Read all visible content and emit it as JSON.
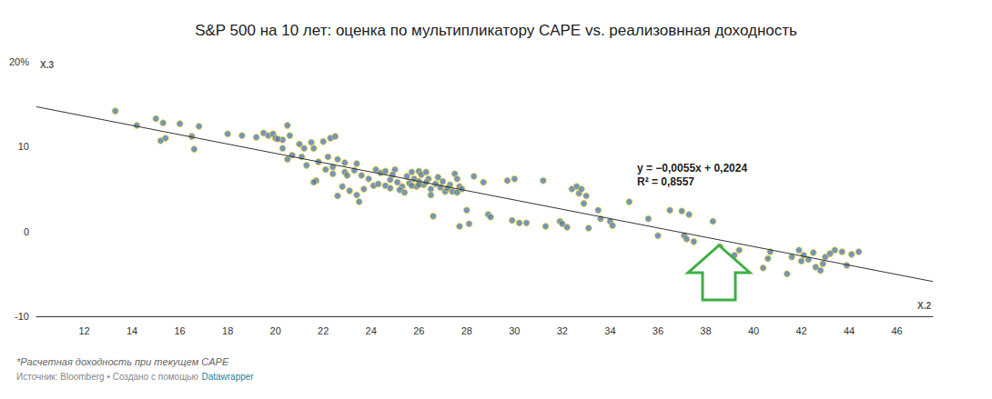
{
  "chart_data": {
    "type": "scatter",
    "title": "S&P 500 на 10 лет: оценка по мультипликатору CAPE vs. реализовнная доходность",
    "x_label": "X.2",
    "y_label": "X.3",
    "x": [
      13.3,
      14.2,
      15,
      15.3,
      15.2,
      15.4,
      16,
      16.5,
      16.6,
      16.8,
      18,
      18.6,
      19.2,
      19.5,
      19.7,
      19.9,
      20,
      20.3,
      20.5,
      20.6,
      20.3,
      20.5,
      20.7,
      21,
      21.2,
      21.3,
      21.5,
      21.6,
      21.8,
      22,
      22.3,
      22.5,
      22.2,
      21.7,
      21.6,
      22.1,
      22.4,
      22.6,
      22.9,
      23,
      23.4,
      23.3,
      23.6,
      23.7,
      23.4,
      23.5,
      22.8,
      22.6,
      23.1,
      22.4,
      23.9,
      24.2,
      24.4,
      24.1,
      24.6,
      24.8,
      24.6,
      24.8,
      25,
      25.1,
      25.3,
      25.2,
      25.5,
      25.6,
      25.7,
      25.8,
      25.9,
      25.4,
      26,
      26,
      26.1,
      26.2,
      26.3,
      26.4,
      26.5,
      26.5,
      26.6,
      26.7,
      26.8,
      26.9,
      27,
      27.1,
      27.3,
      27.5,
      27.6,
      27.4,
      27.7,
      27.8,
      27.6,
      27.7,
      28,
      28.1,
      28.3,
      28.7,
      28.9,
      29,
      29.7,
      29.9,
      30,
      30.2,
      30.5,
      31.2,
      31.3,
      31.9,
      32,
      32.2,
      32.4,
      32.6,
      32.7,
      32.8,
      33,
      32.9,
      33.1,
      33.5,
      33.6,
      34,
      34.1,
      34.8,
      35.6,
      36,
      36.5,
      37,
      37.1,
      37.3,
      37.2,
      37.5,
      38.3,
      38.6,
      38.8,
      39.2,
      39.4,
      40.4,
      40.6,
      40.7,
      41.4,
      41.6,
      41.9,
      42,
      42.1,
      42.3,
      42.5,
      42.6,
      42.8,
      42.9,
      43,
      43.2,
      43.4,
      43.7,
      43.9,
      44.1,
      44.4,
      21.1,
      24.3,
      25.7,
      26.3,
      27.2,
      20.1,
      22.9,
      24.9,
      26.0
    ],
    "values": [
      14.2,
      12.5,
      13.3,
      12.8,
      10.7,
      11,
      12.7,
      11.2,
      9.7,
      12.4,
      11.5,
      11.3,
      11.1,
      11.6,
      11.3,
      11.5,
      11,
      10.8,
      12.5,
      11.3,
      9.8,
      8.5,
      9,
      10.3,
      9.8,
      7.8,
      10.5,
      9.8,
      8.2,
      10.6,
      11,
      11.2,
      8.8,
      6,
      5.8,
      7.3,
      7.6,
      8.5,
      7,
      6.6,
      8,
      7.2,
      6.6,
      5,
      4.3,
      3.5,
      5.3,
      4.2,
      4.8,
      6.8,
      6.2,
      7.3,
      6.9,
      5.4,
      7.1,
      6.1,
      5.4,
      5.1,
      7.3,
      5.8,
      5.3,
      4.9,
      6.5,
      5.7,
      7,
      6.2,
      5.3,
      4.6,
      7.1,
      5.9,
      6.7,
      5.5,
      7,
      6.2,
      5,
      4.3,
      1.8,
      5.6,
      6.4,
      5.2,
      5.9,
      4.7,
      5.5,
      6.8,
      6.2,
      4.7,
      5.3,
      5,
      4.6,
      0.6,
      2.5,
      0.9,
      6.5,
      5.8,
      2,
      1.7,
      6,
      1.3,
      6.2,
      1,
      1,
      6,
      0.6,
      1.2,
      0.9,
      0.5,
      5,
      5.3,
      4.5,
      5,
      4.2,
      3.3,
      0.4,
      2.5,
      1.5,
      1.2,
      0.7,
      3.5,
      1.5,
      -0.5,
      2.5,
      2.4,
      -0.5,
      2,
      -0.9,
      -1.2,
      1.2,
      -1.8,
      -3.5,
      -2.8,
      -2.2,
      -4.3,
      -3.2,
      -2.4,
      -5,
      -3,
      -2.2,
      -3.5,
      -2.8,
      -3.3,
      -2.5,
      -4.2,
      -4.6,
      -3.8,
      -3,
      -2.6,
      -2.2,
      -2.4,
      -4,
      -2.7,
      -2.4,
      8.8,
      5.6,
      5.4,
      5.8,
      5.1,
      10.9,
      8.1,
      6.7,
      5.5
    ],
    "color": "#4f7cac",
    "marker": "circle",
    "trend": {
      "type": "line",
      "x": [
        10,
        47.5
      ],
      "values": [
        14.7,
        -5.9
      ],
      "color": "#333333",
      "line_style": "solid"
    },
    "annotations": [
      "y = −0,0055x + 0,2024",
      "R² = 0,8557"
    ],
    "xlim": [
      10,
      47.5
    ],
    "xticks": [
      12,
      14,
      16,
      18,
      20,
      22,
      24,
      26,
      28,
      30,
      32,
      34,
      36,
      38,
      40,
      42,
      44,
      46
    ],
    "ylim": [
      -10,
      20
    ],
    "yticks": [
      -10,
      0,
      10,
      {
        "value": 20,
        "label": "20%"
      }
    ],
    "grid": false,
    "footnote": "*Расчетная доходность при текущем CAPE",
    "source": "Источник: Bloomberg • Создано с помощью",
    "source_link": "Datawrapper"
  }
}
